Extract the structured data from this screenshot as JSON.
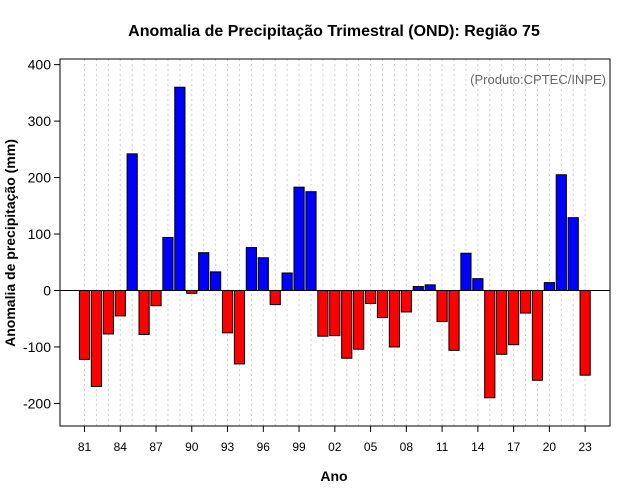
{
  "chart_data": {
    "type": "bar",
    "title": "Anomalia de Precipitação Trimestral (OND): Região 75",
    "xlabel": "Ano",
    "ylabel": "Anomalia de precipitação (mm)",
    "credit": "(Produto:CPTEC/INPE)",
    "ylim": [
      -240,
      410
    ],
    "yticks": [
      -200,
      -100,
      0,
      100,
      200,
      300,
      400
    ],
    "xtick_labels": [
      "81",
      "84",
      "87",
      "90",
      "93",
      "96",
      "99",
      "02",
      "05",
      "08",
      "11",
      "14",
      "17",
      "20",
      "23"
    ],
    "categories": [
      "1981",
      "1982",
      "1983",
      "1984",
      "1985",
      "1986",
      "1987",
      "1988",
      "1989",
      "1990",
      "1991",
      "1992",
      "1993",
      "1994",
      "1995",
      "1996",
      "1997",
      "1998",
      "1999",
      "2000",
      "2001",
      "2002",
      "2003",
      "2004",
      "2005",
      "2006",
      "2007",
      "2008",
      "2009",
      "2010",
      "2011",
      "2012",
      "2013",
      "2014",
      "2015",
      "2016",
      "2017",
      "2018",
      "2019",
      "2020",
      "2021",
      "2022",
      "2023"
    ],
    "values": [
      -122,
      -170,
      -77,
      -45,
      242,
      -78,
      -27,
      94,
      360,
      -5,
      67,
      33,
      -75,
      -130,
      76,
      58,
      -25,
      31,
      183,
      175,
      -81,
      -80,
      -120,
      -104,
      -23,
      -48,
      -100,
      -38,
      7,
      10,
      -55,
      -106,
      66,
      21,
      -190,
      -113,
      -96,
      -40,
      -159,
      14,
      205,
      129,
      -150
    ],
    "colors": {
      "positive": "#0000ff",
      "negative": "#ff0000"
    }
  }
}
